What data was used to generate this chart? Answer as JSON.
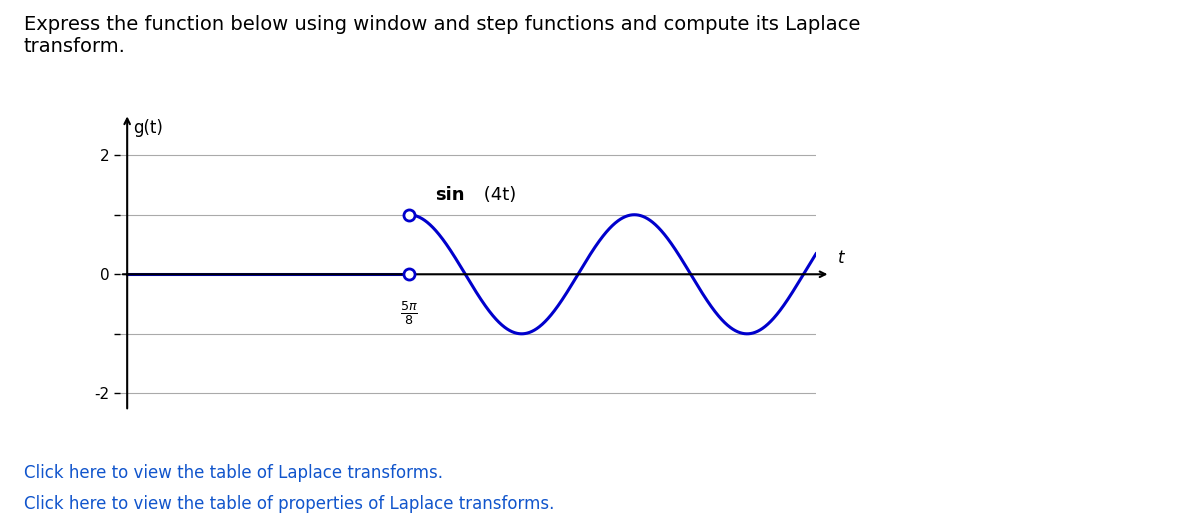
{
  "ylabel": "g(t)",
  "xlabel": "t",
  "ylim": [
    -2.5,
    2.7
  ],
  "xlim": [
    -0.05,
    4.8
  ],
  "yticks": [
    -2,
    -1,
    0,
    1,
    2
  ],
  "ytick_labels": [
    "-2",
    "",
    "0",
    "",
    "2"
  ],
  "start_t": 1.9634954,
  "line_color": "#0000CC",
  "open_circle_color": "#0000CC",
  "background_color": "#ffffff",
  "grid_color": "#aaaaaa",
  "title_fontsize": 14,
  "axis_label_fontsize": 12,
  "tick_fontsize": 11,
  "link_text1": "Click here to view the table of Laplace transforms.",
  "link_text2": "Click here to view the table of properties of Laplace transforms."
}
